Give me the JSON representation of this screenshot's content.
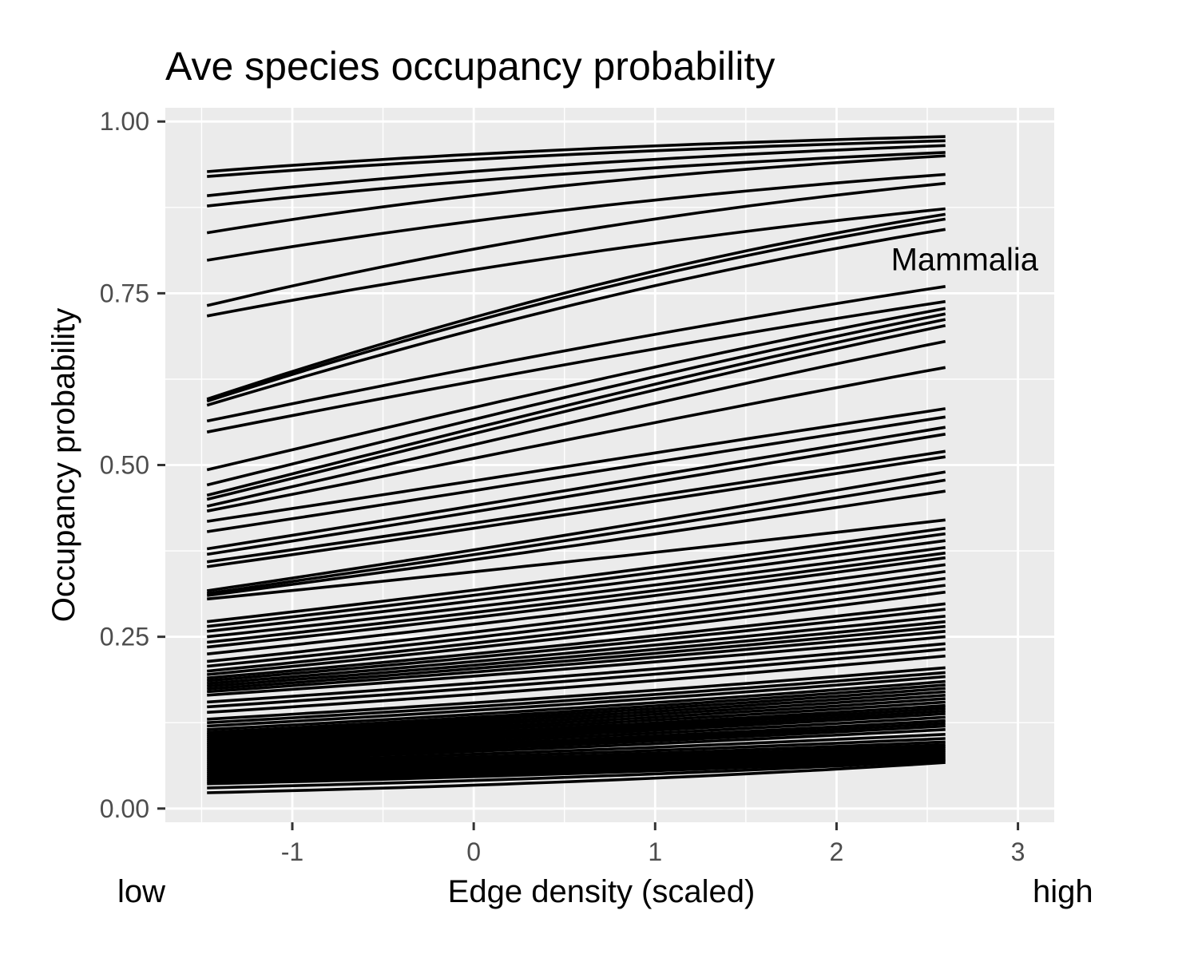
{
  "chart_data": {
    "type": "line",
    "title": "Ave species occupancy probability",
    "xlabel": "Edge density (scaled)",
    "ylabel": "Occupancy probability",
    "x_low_label": "low",
    "x_high_label": "high",
    "annotation": {
      "text": "Mammalia",
      "x": 2.3,
      "y": 0.8
    },
    "xlim": [
      -1.7,
      3.2
    ],
    "ylim": [
      -0.02,
      1.02
    ],
    "x_ticks": [
      -1,
      0,
      1,
      2,
      3
    ],
    "x_tick_labels": [
      "-1",
      "0",
      "1",
      "2",
      "3"
    ],
    "y_ticks": [
      0,
      0.25,
      0.5,
      0.75,
      1
    ],
    "y_tick_labels": [
      "0.00",
      "0.25",
      "0.50",
      "0.75",
      "1.00"
    ],
    "grid": true,
    "line_color": "#000000",
    "panel_background": "#ebebeb",
    "x_domain": [
      -1.47,
      2.6
    ],
    "series_endpoints": [
      [
        0.927,
        0.978
      ],
      [
        0.92,
        0.972
      ],
      [
        0.892,
        0.965
      ],
      [
        0.877,
        0.955
      ],
      [
        0.838,
        0.95
      ],
      [
        0.798,
        0.923
      ],
      [
        0.732,
        0.91
      ],
      [
        0.717,
        0.873
      ],
      [
        0.596,
        0.865
      ],
      [
        0.593,
        0.858
      ],
      [
        0.587,
        0.843
      ],
      [
        0.564,
        0.76
      ],
      [
        0.548,
        0.738
      ],
      [
        0.493,
        0.728
      ],
      [
        0.471,
        0.72
      ],
      [
        0.456,
        0.712
      ],
      [
        0.45,
        0.703
      ],
      [
        0.44,
        0.68
      ],
      [
        0.433,
        0.642
      ],
      [
        0.418,
        0.582
      ],
      [
        0.403,
        0.57
      ],
      [
        0.378,
        0.555
      ],
      [
        0.37,
        0.545
      ],
      [
        0.359,
        0.52
      ],
      [
        0.352,
        0.512
      ],
      [
        0.317,
        0.49
      ],
      [
        0.313,
        0.478
      ],
      [
        0.31,
        0.462
      ],
      [
        0.305,
        0.42
      ],
      [
        0.272,
        0.408
      ],
      [
        0.265,
        0.4
      ],
      [
        0.258,
        0.39
      ],
      [
        0.25,
        0.38
      ],
      [
        0.242,
        0.372
      ],
      [
        0.235,
        0.365
      ],
      [
        0.225,
        0.355
      ],
      [
        0.214,
        0.345
      ],
      [
        0.207,
        0.335
      ],
      [
        0.2,
        0.325
      ],
      [
        0.195,
        0.315
      ],
      [
        0.19,
        0.298
      ],
      [
        0.186,
        0.29
      ],
      [
        0.182,
        0.28
      ],
      [
        0.178,
        0.272
      ],
      [
        0.174,
        0.265
      ],
      [
        0.17,
        0.258
      ],
      [
        0.165,
        0.25
      ],
      [
        0.155,
        0.24
      ],
      [
        0.148,
        0.232
      ],
      [
        0.14,
        0.222
      ],
      [
        0.13,
        0.205
      ],
      [
        0.125,
        0.198
      ],
      [
        0.12,
        0.192
      ],
      [
        0.115,
        0.185
      ],
      [
        0.111,
        0.18
      ],
      [
        0.108,
        0.175
      ],
      [
        0.105,
        0.17
      ],
      [
        0.102,
        0.165
      ],
      [
        0.099,
        0.16
      ],
      [
        0.096,
        0.155
      ],
      [
        0.093,
        0.15
      ],
      [
        0.09,
        0.146
      ],
      [
        0.087,
        0.142
      ],
      [
        0.084,
        0.138
      ],
      [
        0.081,
        0.133
      ],
      [
        0.078,
        0.128
      ],
      [
        0.075,
        0.124
      ],
      [
        0.072,
        0.12
      ],
      [
        0.069,
        0.115
      ],
      [
        0.066,
        0.108
      ],
      [
        0.063,
        0.102
      ],
      [
        0.06,
        0.097
      ],
      [
        0.057,
        0.093
      ],
      [
        0.054,
        0.09
      ],
      [
        0.051,
        0.087
      ],
      [
        0.048,
        0.084
      ],
      [
        0.045,
        0.081
      ],
      [
        0.042,
        0.078
      ],
      [
        0.039,
        0.075
      ],
      [
        0.036,
        0.072
      ],
      [
        0.03,
        0.07
      ],
      [
        0.023,
        0.067
      ]
    ]
  }
}
